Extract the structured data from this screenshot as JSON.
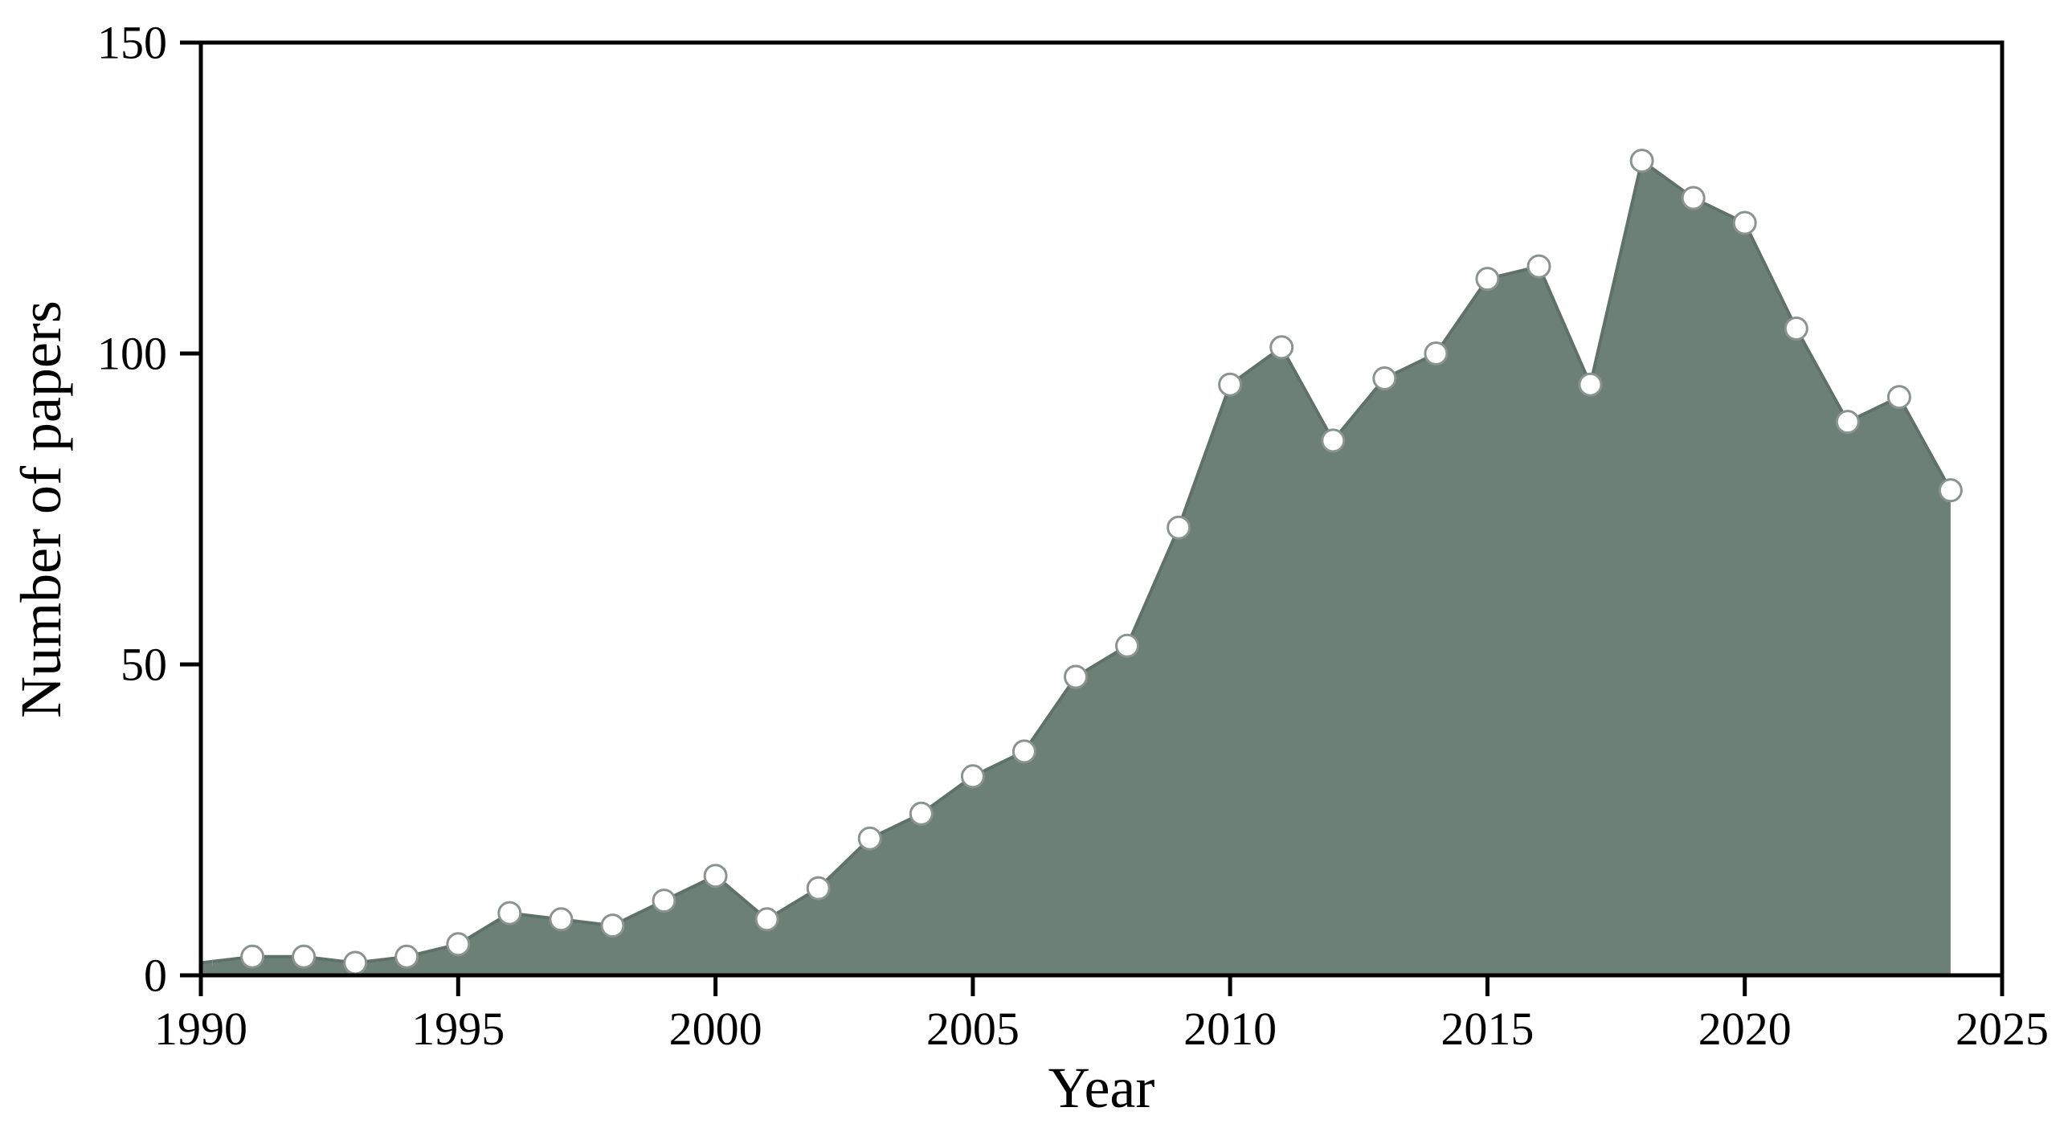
{
  "figure": {
    "background": "#ffffff"
  },
  "chart_data": {
    "type": "area",
    "title": "",
    "xlabel": "Year",
    "ylabel": "Number of papers",
    "x": [
      1990,
      1991,
      1992,
      1993,
      1994,
      1995,
      1996,
      1997,
      1998,
      1999,
      2000,
      2001,
      2002,
      2003,
      2004,
      2005,
      2006,
      2007,
      2008,
      2009,
      2010,
      2011,
      2012,
      2013,
      2014,
      2015,
      2016,
      2017,
      2018,
      2019,
      2020,
      2021,
      2022,
      2023,
      2024
    ],
    "values": [
      2,
      3,
      3,
      2,
      3,
      5,
      10,
      9,
      8,
      12,
      16,
      9,
      14,
      22,
      26,
      32,
      36,
      48,
      53,
      72,
      95,
      101,
      86,
      96,
      100,
      112,
      114,
      95,
      131,
      125,
      121,
      104,
      89,
      93,
      78
    ],
    "series_name": "Number of papers",
    "xlim": [
      1990,
      2025
    ],
    "ylim": [
      0,
      150
    ],
    "xticks": [
      1990,
      1995,
      2000,
      2005,
      2010,
      2015,
      2020,
      2025
    ],
    "yticks": [
      0,
      50,
      100,
      150
    ],
    "grid": false,
    "legend": false,
    "marker_style": "open-circle",
    "colors": {
      "area_fill": "#6C8077",
      "line": "#5E7269",
      "marker_fill": "#FFFFFF",
      "marker_edge": "#8A938F",
      "axis": "#000000",
      "text": "#000000"
    }
  }
}
